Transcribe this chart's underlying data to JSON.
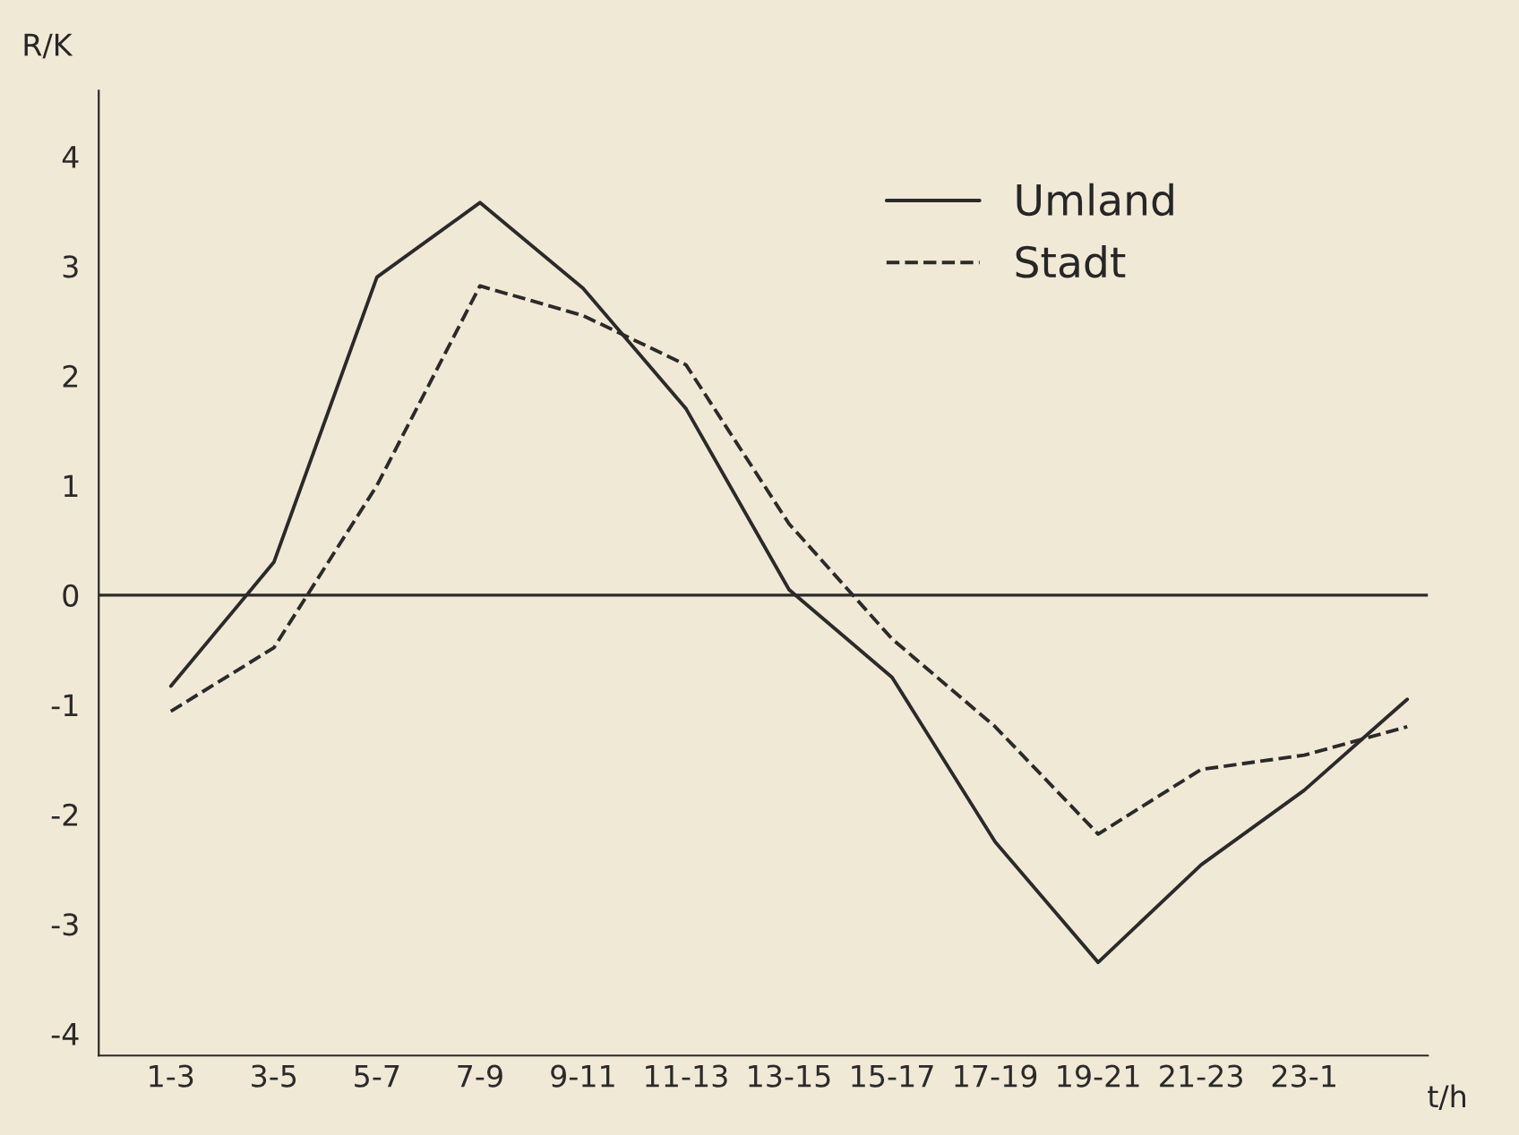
{
  "chart_data": {
    "type": "line",
    "xlabel": "t/h",
    "ylabel": "R/K",
    "categories": [
      "1-3",
      "3-5",
      "5-7",
      "7-9",
      "9-11",
      "11-13",
      "13-15",
      "15-17",
      "17-19",
      "19-21",
      "21-23",
      "23-1",
      null
    ],
    "ylim": [
      -4.2,
      4.6
    ],
    "yticks": [
      -4,
      -3,
      -2,
      -1,
      0,
      1,
      2,
      3,
      4
    ],
    "legend": "top right",
    "marker": "none",
    "ref_lines": [
      {
        "axis": "y",
        "value": 0,
        "color": "#2a2a2a"
      }
    ],
    "series": [
      {
        "name": "Umland",
        "color": "#2a2a2a",
        "line_style": "solid",
        "values": [
          -0.83,
          0.3,
          2.9,
          3.58,
          2.8,
          1.7,
          0.05,
          -0.75,
          -2.25,
          -3.35,
          -2.46,
          -1.78,
          -0.95
        ]
      },
      {
        "name": "Stadt",
        "color": "#2a2a2a",
        "line_style": "dashed",
        "values": [
          -1.06,
          -0.48,
          1.0,
          2.82,
          2.55,
          2.1,
          0.65,
          -0.4,
          -1.2,
          -2.18,
          -1.59,
          -1.46,
          -1.2
        ]
      }
    ]
  }
}
